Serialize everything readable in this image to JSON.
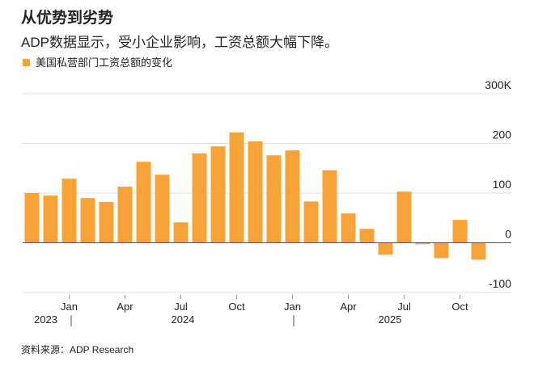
{
  "chart_data": {
    "type": "bar",
    "title": "从优势到劣势",
    "subtitle": "ADP数据显示，受小企业影响，工资总额大幅下降。",
    "legend": "美国私营部门工资总额的变化",
    "source": "资料来源：ADP Research",
    "color": "#f7a338",
    "categories": [
      null,
      null,
      "Jan",
      null,
      null,
      "Apr",
      null,
      null,
      "Jul",
      null,
      null,
      "Oct",
      null,
      null,
      "Jan",
      null,
      null,
      "Apr",
      null,
      null,
      "Jul",
      null,
      null,
      "Oct",
      null
    ],
    "years": [
      "2023",
      "2024",
      "2025"
    ],
    "values": [
      100,
      95,
      129,
      90,
      82,
      113,
      163,
      137,
      41,
      180,
      194,
      222,
      204,
      176,
      186,
      83,
      146,
      59,
      28,
      -24,
      103,
      -3,
      -31,
      46,
      -34
    ],
    "ylim": [
      -100,
      300
    ],
    "yticks": [
      -100,
      0,
      100,
      200,
      {
        "value": 300,
        "label": "300K"
      }
    ],
    "grid": true
  }
}
